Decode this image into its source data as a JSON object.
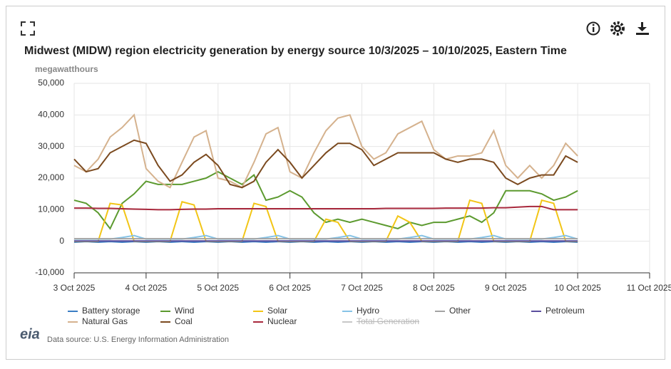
{
  "chart_data": {
    "type": "line",
    "title": "Midwest (MIDW) region electricity generation by energy source 10/3/2025 – 10/10/2025, Eastern Time",
    "y_label": "megawatthours",
    "source": "Data source: U.S. Energy Information Administration",
    "logo": "eia",
    "x": [
      0,
      4,
      8,
      12,
      16,
      20,
      24,
      28,
      32,
      36,
      40,
      44,
      48,
      52,
      56,
      60,
      64,
      68,
      72,
      76,
      80,
      84,
      88,
      92,
      96,
      100,
      104,
      108,
      112,
      116,
      120,
      124,
      128,
      132,
      136,
      140,
      144,
      148,
      152,
      156,
      160,
      164,
      168
    ],
    "xlim": [
      0,
      192
    ],
    "xticks": [
      {
        "value": 0,
        "label": "3 Oct 2025"
      },
      {
        "value": 24,
        "label": "4 Oct 2025"
      },
      {
        "value": 48,
        "label": "5 Oct 2025"
      },
      {
        "value": 72,
        "label": "6 Oct 2025"
      },
      {
        "value": 96,
        "label": "7 Oct 2025"
      },
      {
        "value": 120,
        "label": "8 Oct 2025"
      },
      {
        "value": 144,
        "label": "9 Oct 2025"
      },
      {
        "value": 168,
        "label": "10 Oct 2025"
      },
      {
        "value": 192,
        "label": "11 Oct 2025"
      }
    ],
    "ylim": [
      -10000,
      50000
    ],
    "yticks": [
      {
        "value": -10000,
        "label": "-10,000"
      },
      0,
      {
        "value": 10000,
        "label": "10,000"
      },
      {
        "value": 20000,
        "label": "20,000"
      },
      {
        "value": 30000,
        "label": "30,000"
      },
      {
        "value": 40000,
        "label": "40,000"
      },
      {
        "value": 50000,
        "label": "50,000"
      }
    ],
    "grid": true,
    "series": [
      {
        "name": "Battery storage",
        "color": "#3b7dc4",
        "values": [
          -300,
          -100,
          -300,
          -100,
          -300,
          -100,
          -300,
          -100,
          -300,
          -100,
          -300,
          -100,
          -300,
          -100,
          -300,
          -100,
          -300,
          -100,
          -300,
          -100,
          -300,
          -100,
          -300,
          -100,
          -300,
          -100,
          -300,
          -100,
          -300,
          -100,
          -300,
          -100,
          -300,
          -100,
          -300,
          -100,
          -300,
          -100,
          -300,
          -100,
          -300,
          -100,
          -300
        ]
      },
      {
        "name": "Wind",
        "color": "#5c9a2f",
        "values": [
          13000,
          12000,
          9000,
          4000,
          12000,
          15000,
          19000,
          18000,
          18000,
          18000,
          19000,
          20000,
          22000,
          20000,
          18000,
          21000,
          13000,
          14000,
          16000,
          14000,
          9000,
          6000,
          7000,
          6000,
          7000,
          6000,
          5000,
          4000,
          6000,
          5000,
          6000,
          6000,
          7000,
          8000,
          6000,
          9000,
          16000,
          16000,
          16000,
          15000,
          13000,
          14000,
          16000
        ]
      },
      {
        "name": "Solar",
        "color": "#f2c516",
        "values": [
          0,
          0,
          0,
          12000,
          11500,
          0,
          0,
          0,
          0,
          12500,
          11500,
          0,
          0,
          0,
          0,
          12000,
          11000,
          0,
          0,
          0,
          0,
          7000,
          6000,
          0,
          0,
          0,
          0,
          8000,
          6000,
          0,
          0,
          0,
          0,
          13000,
          12000,
          0,
          0,
          0,
          0,
          13000,
          12000,
          0,
          0
        ]
      },
      {
        "name": "Hydro",
        "color": "#86c3e6",
        "values": [
          700,
          700,
          700,
          700,
          1200,
          1800,
          700,
          700,
          700,
          700,
          1200,
          1800,
          700,
          700,
          700,
          700,
          1200,
          1800,
          700,
          700,
          700,
          700,
          1200,
          1800,
          700,
          700,
          700,
          700,
          1200,
          1800,
          700,
          700,
          700,
          700,
          1200,
          1800,
          700,
          700,
          700,
          700,
          1200,
          1800,
          700
        ]
      },
      {
        "name": "Other",
        "color": "#a3a3a3",
        "values": [
          800,
          800,
          800,
          800,
          800,
          800,
          800,
          800,
          800,
          800,
          800,
          800,
          800,
          800,
          800,
          800,
          800,
          800,
          800,
          800,
          800,
          800,
          800,
          800,
          800,
          800,
          800,
          800,
          800,
          800,
          800,
          800,
          800,
          800,
          800,
          800,
          800,
          800,
          800,
          800,
          800,
          800,
          800
        ]
      },
      {
        "name": "Petroleum",
        "color": "#5b4e9e",
        "values": [
          100,
          100,
          100,
          100,
          100,
          100,
          100,
          100,
          100,
          100,
          100,
          100,
          100,
          100,
          100,
          100,
          100,
          100,
          100,
          100,
          100,
          100,
          100,
          100,
          100,
          100,
          100,
          100,
          100,
          100,
          100,
          100,
          100,
          100,
          100,
          100,
          100,
          100,
          100,
          100,
          100,
          100,
          100
        ]
      },
      {
        "name": "Natural Gas",
        "color": "#d5b28e",
        "values": [
          24000,
          22000,
          26000,
          33000,
          36000,
          40000,
          23000,
          19000,
          17000,
          25000,
          33000,
          35000,
          20000,
          19000,
          17000,
          25000,
          34000,
          36000,
          22000,
          20000,
          28000,
          35000,
          39000,
          40000,
          30000,
          26000,
          28000,
          34000,
          36000,
          38000,
          29000,
          26000,
          27000,
          27000,
          28000,
          35000,
          24000,
          20000,
          24000,
          20000,
          24000,
          31000,
          27000
        ]
      },
      {
        "name": "Coal",
        "color": "#7b4a1f",
        "values": [
          26000,
          22000,
          23000,
          28000,
          30000,
          32000,
          31000,
          24000,
          19000,
          21000,
          25000,
          27500,
          24000,
          18000,
          17000,
          19000,
          25000,
          29000,
          25000,
          20000,
          24000,
          28000,
          31000,
          31000,
          29000,
          24000,
          26000,
          28000,
          28000,
          28000,
          28000,
          26000,
          25000,
          26000,
          26000,
          25000,
          20000,
          18000,
          20000,
          21000,
          21000,
          27000,
          25000
        ]
      },
      {
        "name": "Nuclear",
        "color": "#a8283c",
        "values": [
          10500,
          10500,
          10400,
          10400,
          10300,
          10200,
          10100,
          10000,
          10000,
          10100,
          10200,
          10200,
          10300,
          10300,
          10300,
          10300,
          10300,
          10300,
          10300,
          10300,
          10300,
          10300,
          10300,
          10300,
          10300,
          10300,
          10400,
          10400,
          10400,
          10400,
          10400,
          10500,
          10500,
          10500,
          10500,
          10600,
          10600,
          10800,
          11000,
          11000,
          10000,
          10000,
          10000
        ]
      },
      {
        "name": "Total Generation",
        "color": "#c8c8c8",
        "hidden": true
      }
    ]
  }
}
